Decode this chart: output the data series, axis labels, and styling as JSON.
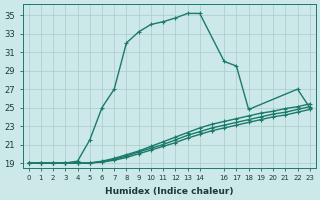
{
  "xlabel": "Humidex (Indice chaleur)",
  "bg_color": "#cce8e8",
  "grid_color": "#aacccc",
  "line_color": "#1a7a6a",
  "xlim": [
    -0.5,
    23.5
  ],
  "ylim": [
    18.5,
    36.2
  ],
  "xtick_positions": [
    0,
    1,
    2,
    3,
    4,
    5,
    6,
    7,
    8,
    9,
    10,
    11,
    12,
    13,
    14,
    16,
    17,
    18,
    19,
    20,
    21,
    22,
    23
  ],
  "xtick_labels": [
    "0",
    "1",
    "2",
    "3",
    "4",
    "5",
    "6",
    "7",
    "8",
    "9",
    "10",
    "11",
    "12",
    "13",
    "14",
    "16",
    "17",
    "18",
    "19",
    "20",
    "21",
    "22",
    "23"
  ],
  "yticks": [
    19,
    21,
    23,
    25,
    27,
    29,
    31,
    33,
    35
  ],
  "main_x": [
    0,
    1,
    2,
    3,
    4,
    5,
    6,
    7,
    8,
    9,
    10,
    11,
    12,
    13,
    14,
    16,
    17,
    18,
    22,
    23
  ],
  "main_y": [
    19,
    19,
    19,
    19,
    19.2,
    21.5,
    25,
    27,
    32,
    33.2,
    34,
    34.3,
    34.7,
    35.2,
    35.2,
    30,
    29.5,
    24.8,
    27,
    25
  ],
  "l1_x": [
    0,
    1,
    2,
    3,
    4,
    5,
    6,
    7,
    8,
    9,
    10,
    11,
    12,
    13,
    14,
    15,
    16,
    17,
    18,
    19,
    20,
    21,
    22,
    23
  ],
  "l1_y": [
    19,
    19,
    19,
    19,
    19,
    19,
    19.1,
    19.3,
    19.6,
    20.0,
    20.4,
    20.8,
    21.2,
    21.7,
    22.1,
    22.5,
    22.8,
    23.1,
    23.4,
    23.7,
    24.0,
    24.2,
    24.5,
    24.8
  ],
  "l2_x": [
    0,
    1,
    2,
    3,
    4,
    5,
    6,
    7,
    8,
    9,
    10,
    11,
    12,
    13,
    14,
    15,
    16,
    17,
    18,
    19,
    20,
    21,
    22,
    23
  ],
  "l2_y": [
    19,
    19,
    19,
    19,
    19,
    19,
    19.15,
    19.4,
    19.75,
    20.2,
    20.6,
    21.0,
    21.5,
    22.0,
    22.4,
    22.8,
    23.1,
    23.4,
    23.7,
    24.0,
    24.3,
    24.5,
    24.8,
    25.1
  ],
  "l3_x": [
    0,
    1,
    2,
    3,
    4,
    5,
    6,
    7,
    8,
    9,
    10,
    11,
    12,
    13,
    14,
    15,
    16,
    17,
    18,
    19,
    20,
    21,
    22,
    23
  ],
  "l3_y": [
    19,
    19,
    19,
    19,
    19,
    19,
    19.2,
    19.5,
    19.9,
    20.3,
    20.8,
    21.3,
    21.8,
    22.3,
    22.8,
    23.2,
    23.5,
    23.8,
    24.1,
    24.4,
    24.6,
    24.9,
    25.1,
    25.4
  ]
}
